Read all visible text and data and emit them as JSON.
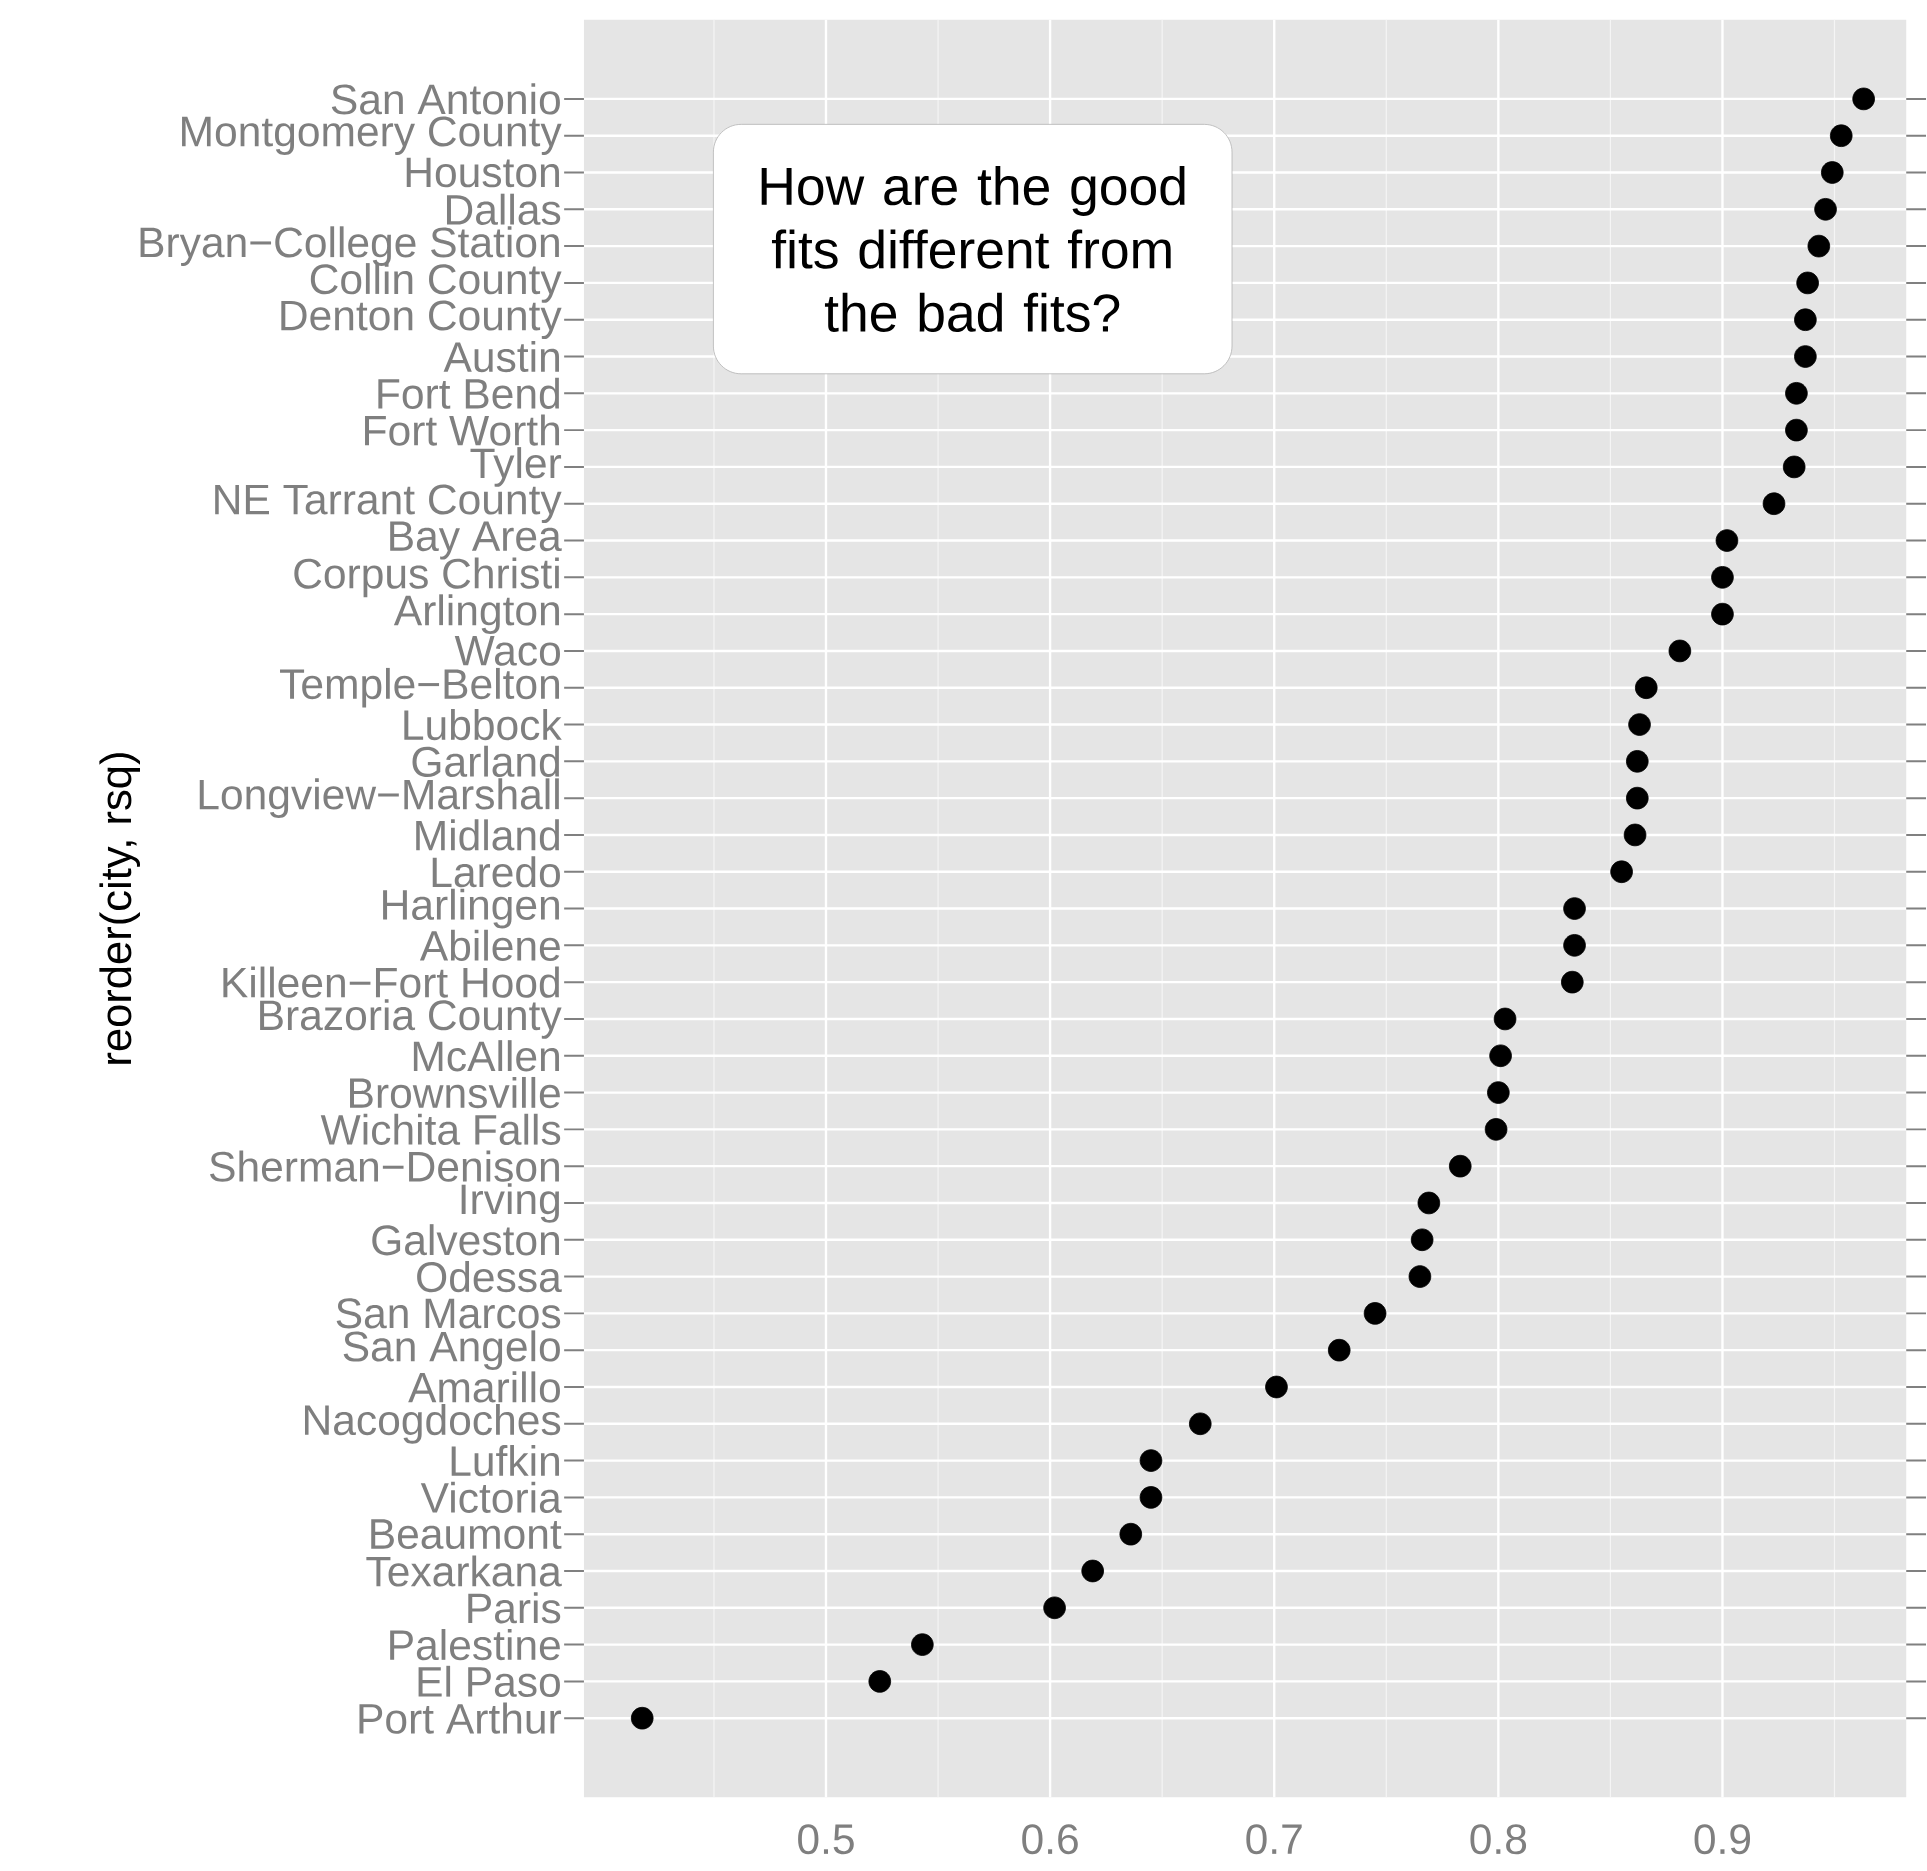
{
  "chart_data": {
    "type": "scatter",
    "ylabel": "reorder(city, rsq)",
    "categories": [
      "San Antonio",
      "Montgomery County",
      "Houston",
      "Dallas",
      "Bryan−College Station",
      "Collin County",
      "Denton County",
      "Austin",
      "Fort Bend",
      "Fort Worth",
      "Tyler",
      "NE Tarrant County",
      "Bay Area",
      "Corpus Christi",
      "Arlington",
      "Waco",
      "Temple−Belton",
      "Lubbock",
      "Garland",
      "Longview−Marshall",
      "Midland",
      "Laredo",
      "Harlingen",
      "Abilene",
      "Killeen−Fort Hood",
      "Brazoria County",
      "McAllen",
      "Brownsville",
      "Wichita Falls",
      "Sherman−Denison",
      "Irving",
      "Galveston",
      "Odessa",
      "San Marcos",
      "San Angelo",
      "Amarillo",
      "Nacogdoches",
      "Lufkin",
      "Victoria",
      "Beaumont",
      "Texarkana",
      "Paris",
      "Palestine",
      "El Paso",
      "Port Arthur"
    ],
    "orientation": "horizontal",
    "values": [
      0.963,
      0.953,
      0.949,
      0.946,
      0.943,
      0.938,
      0.937,
      0.937,
      0.933,
      0.933,
      0.932,
      0.923,
      0.902,
      0.9,
      0.9,
      0.881,
      0.866,
      0.863,
      0.862,
      0.862,
      0.861,
      0.855,
      0.834,
      0.834,
      0.833,
      0.803,
      0.801,
      0.8,
      0.799,
      0.783,
      0.769,
      0.766,
      0.765,
      0.745,
      0.729,
      0.701,
      0.667,
      0.645,
      0.645,
      0.636,
      0.619,
      0.602,
      0.543,
      0.524,
      0.418
    ],
    "color": "#000000",
    "marker": "circle",
    "grid": true,
    "xlim": [
      0.392,
      0.982
    ],
    "xticks": [
      0.5,
      0.6,
      0.7,
      0.8,
      0.9
    ],
    "annotations": [
      "How are the good fits different from the bad fits?"
    ]
  }
}
